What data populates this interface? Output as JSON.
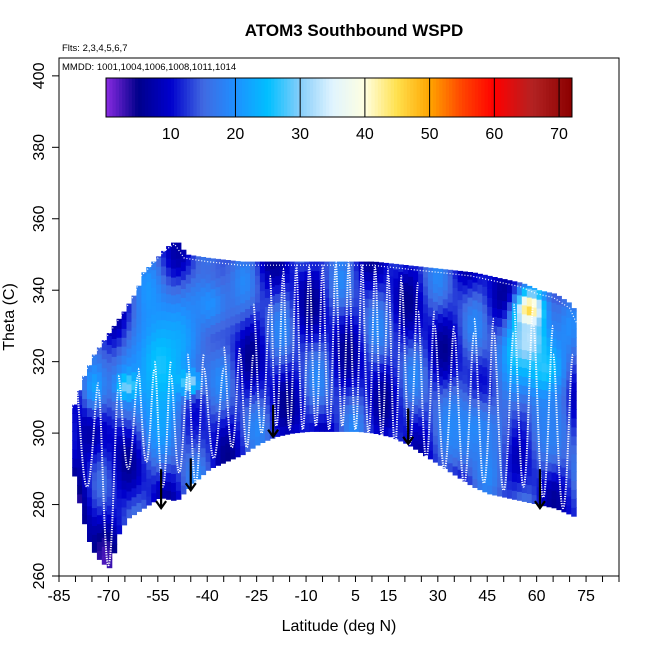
{
  "chart_data": {
    "type": "heatmap",
    "title": "ATOM3 Southbound WSPD",
    "subtitle_flights": "Flts: 2,3,4,5,6,7",
    "subtitle_dates": "MMDD: 1001,1004,1006,1008,1011,1014",
    "xlabel": "Latitude (deg N)",
    "ylabel": "Theta (C)",
    "xlim": [
      -85,
      85
    ],
    "ylim": [
      260,
      405
    ],
    "x_tick_labels": [
      "-85",
      "-70",
      "-55",
      "-40",
      "-25",
      "-10",
      "5",
      "15",
      "30",
      "45",
      "60",
      "75"
    ],
    "x_tick_values": [
      -85,
      -70,
      -55,
      -40,
      -25,
      -10,
      5,
      15,
      30,
      45,
      60,
      75
    ],
    "x_minor_step": 5,
    "y_ticks": [
      260,
      280,
      300,
      320,
      340,
      360,
      380,
      400
    ],
    "y_tick_labels": [
      "260",
      "280",
      "300",
      "320",
      "340",
      "360",
      "380",
      "400"
    ],
    "colorbar": {
      "min": 0,
      "max": 72,
      "tick_values": [
        10,
        20,
        30,
        40,
        50,
        60,
        70
      ],
      "tick_labels": [
        "10",
        "20",
        "30",
        "40",
        "50",
        "60",
        "70"
      ],
      "divider_values": [
        20,
        30,
        40,
        50,
        60,
        70
      ],
      "colors": [
        "#8a2be2",
        "#00008b",
        "#0000cd",
        "#4169e1",
        "#1e90ff",
        "#00bfff",
        "#87cefa",
        "#e0f4ff",
        "#ffffe0",
        "#ffe04d",
        "#ffa500",
        "#ff4500",
        "#ff0000",
        "#b22222",
        "#8b0000"
      ],
      "color_stops": [
        0,
        5,
        10,
        15,
        20,
        25,
        30,
        35,
        40,
        45,
        50,
        55,
        60,
        66,
        72
      ]
    },
    "field": {
      "floor_profile": [
        [
          -81,
          288
        ],
        [
          -79,
          278
        ],
        [
          -76,
          268
        ],
        [
          -73,
          264
        ],
        [
          -70,
          262
        ],
        [
          -68,
          271
        ],
        [
          -65,
          276
        ],
        [
          -60,
          279
        ],
        [
          -55,
          282
        ],
        [
          -50,
          281
        ],
        [
          -45,
          286
        ],
        [
          -40,
          290
        ],
        [
          -35,
          292
        ],
        [
          -30,
          294
        ],
        [
          -25,
          297
        ],
        [
          -20,
          299
        ],
        [
          -15,
          300
        ],
        [
          -10,
          300.5
        ],
        [
          -5,
          300.5
        ],
        [
          0,
          300.5
        ],
        [
          5,
          300.5
        ],
        [
          10,
          300
        ],
        [
          15,
          299
        ],
        [
          20,
          297
        ],
        [
          25,
          294
        ],
        [
          30,
          291
        ],
        [
          35,
          288
        ],
        [
          40,
          285
        ],
        [
          45,
          283
        ],
        [
          50,
          282
        ],
        [
          55,
          281
        ],
        [
          60,
          280
        ],
        [
          65,
          279
        ],
        [
          70,
          277
        ],
        [
          72,
          276
        ]
      ],
      "top_profile": [
        [
          -81,
          308
        ],
        [
          -78,
          316
        ],
        [
          -75,
          322
        ],
        [
          -72,
          326
        ],
        [
          -69,
          330
        ],
        [
          -66,
          334
        ],
        [
          -62,
          340
        ],
        [
          -60,
          345
        ],
        [
          -57,
          348
        ],
        [
          -53,
          352
        ],
        [
          -50,
          354
        ],
        [
          -47,
          350
        ],
        [
          -40,
          349
        ],
        [
          -30,
          348
        ],
        [
          -20,
          348
        ],
        [
          -10,
          348
        ],
        [
          0,
          348
        ],
        [
          10,
          348
        ],
        [
          20,
          347
        ],
        [
          30,
          346
        ],
        [
          40,
          345
        ],
        [
          50,
          343
        ],
        [
          55,
          342
        ],
        [
          60,
          340
        ],
        [
          65,
          339
        ],
        [
          70,
          336
        ],
        [
          72,
          332
        ]
      ],
      "anomalies": [
        {
          "lat": 57,
          "theta": 333,
          "wspd": 52,
          "spread_lat": 4,
          "spread_theta": 5
        },
        {
          "lat": 57,
          "theta": 324,
          "wspd": 34,
          "spread_lat": 7,
          "spread_theta": 9
        },
        {
          "lat": 62,
          "theta": 316,
          "wspd": 28,
          "spread_lat": 6,
          "spread_theta": 8
        },
        {
          "lat": -55,
          "theta": 318,
          "wspd": 26,
          "spread_lat": 10,
          "spread_theta": 20
        },
        {
          "lat": -75,
          "theta": 312,
          "wspd": 22,
          "spread_lat": 5,
          "spread_theta": 10
        },
        {
          "lat": -40,
          "theta": 335,
          "wspd": 20,
          "spread_lat": 8,
          "spread_theta": 10
        },
        {
          "lat": -46,
          "theta": 313,
          "wspd": 32,
          "spread_lat": 3,
          "spread_theta": 3
        },
        {
          "lat": -65,
          "theta": 312,
          "wspd": 30,
          "spread_lat": 3,
          "spread_theta": 3
        },
        {
          "lat": 40,
          "theta": 300,
          "wspd": 19,
          "spread_lat": 12,
          "spread_theta": 12
        },
        {
          "lat": 64,
          "theta": 300,
          "wspd": 18,
          "spread_lat": 6,
          "spread_theta": 12
        }
      ],
      "base_wspd": 12
    },
    "flight_profiles": [
      {
        "lat_start": -80,
        "lat_end": -73,
        "top": 314,
        "bottom": 285
      },
      {
        "lat_start": -73,
        "lat_end": -67,
        "top": 312,
        "bottom": 263
      },
      {
        "lat_start": -67,
        "lat_end": -61,
        "top": 316,
        "bottom": 290
      },
      {
        "lat_start": -61,
        "lat_end": -56,
        "top": 318,
        "bottom": 292
      },
      {
        "lat_start": -56,
        "lat_end": -51,
        "top": 320,
        "bottom": 285
      },
      {
        "lat_start": -51,
        "lat_end": -46,
        "top": 316,
        "bottom": 289
      },
      {
        "lat_start": -46,
        "lat_end": -41,
        "top": 322,
        "bottom": 286
      },
      {
        "lat_start": -41,
        "lat_end": -35,
        "top": 318,
        "bottom": 293
      },
      {
        "lat_start": -35,
        "lat_end": -30,
        "top": 324,
        "bottom": 296
      },
      {
        "lat_start": -30,
        "lat_end": -26,
        "top": 322,
        "bottom": 296
      },
      {
        "lat_start": -26,
        "lat_end": -21,
        "top": 336,
        "bottom": 300
      },
      {
        "lat_start": -21,
        "lat_end": -17,
        "top": 344,
        "bottom": 302
      },
      {
        "lat_start": -17,
        "lat_end": -13,
        "top": 346,
        "bottom": 301
      },
      {
        "lat_start": -13,
        "lat_end": -9,
        "top": 347,
        "bottom": 301
      },
      {
        "lat_start": -9,
        "lat_end": -5,
        "top": 346,
        "bottom": 302
      },
      {
        "lat_start": -5,
        "lat_end": -1,
        "top": 347,
        "bottom": 301
      },
      {
        "lat_start": -1,
        "lat_end": 3,
        "top": 348,
        "bottom": 302
      },
      {
        "lat_start": 3,
        "lat_end": 7,
        "top": 347,
        "bottom": 301
      },
      {
        "lat_start": 7,
        "lat_end": 11,
        "top": 347,
        "bottom": 300
      },
      {
        "lat_start": 11,
        "lat_end": 15,
        "top": 346,
        "bottom": 299
      },
      {
        "lat_start": 15,
        "lat_end": 19,
        "top": 344,
        "bottom": 296
      },
      {
        "lat_start": 19,
        "lat_end": 24,
        "top": 342,
        "bottom": 297
      },
      {
        "lat_start": 24,
        "lat_end": 29,
        "top": 334,
        "bottom": 293
      },
      {
        "lat_start": 29,
        "lat_end": 35,
        "top": 330,
        "bottom": 290
      },
      {
        "lat_start": 35,
        "lat_end": 41,
        "top": 328,
        "bottom": 286
      },
      {
        "lat_start": 41,
        "lat_end": 47,
        "top": 332,
        "bottom": 286
      },
      {
        "lat_start": 47,
        "lat_end": 53,
        "top": 328,
        "bottom": 284
      },
      {
        "lat_start": 53,
        "lat_end": 59,
        "top": 336,
        "bottom": 285
      },
      {
        "lat_start": 59,
        "lat_end": 65,
        "top": 330,
        "bottom": 282
      },
      {
        "lat_start": 65,
        "lat_end": 71,
        "top": 322,
        "bottom": 279
      }
    ],
    "arrows": [
      {
        "lat": -54,
        "theta_top": 286,
        "theta_bottom": 279
      },
      {
        "lat": -45,
        "theta_top": 289,
        "theta_bottom": 284
      },
      {
        "lat": -20,
        "theta_top": 304,
        "theta_bottom": 299
      },
      {
        "lat": 21,
        "theta_top": 303,
        "theta_bottom": 297
      },
      {
        "lat": 61,
        "theta_top": 286,
        "theta_bottom": 279
      }
    ]
  }
}
